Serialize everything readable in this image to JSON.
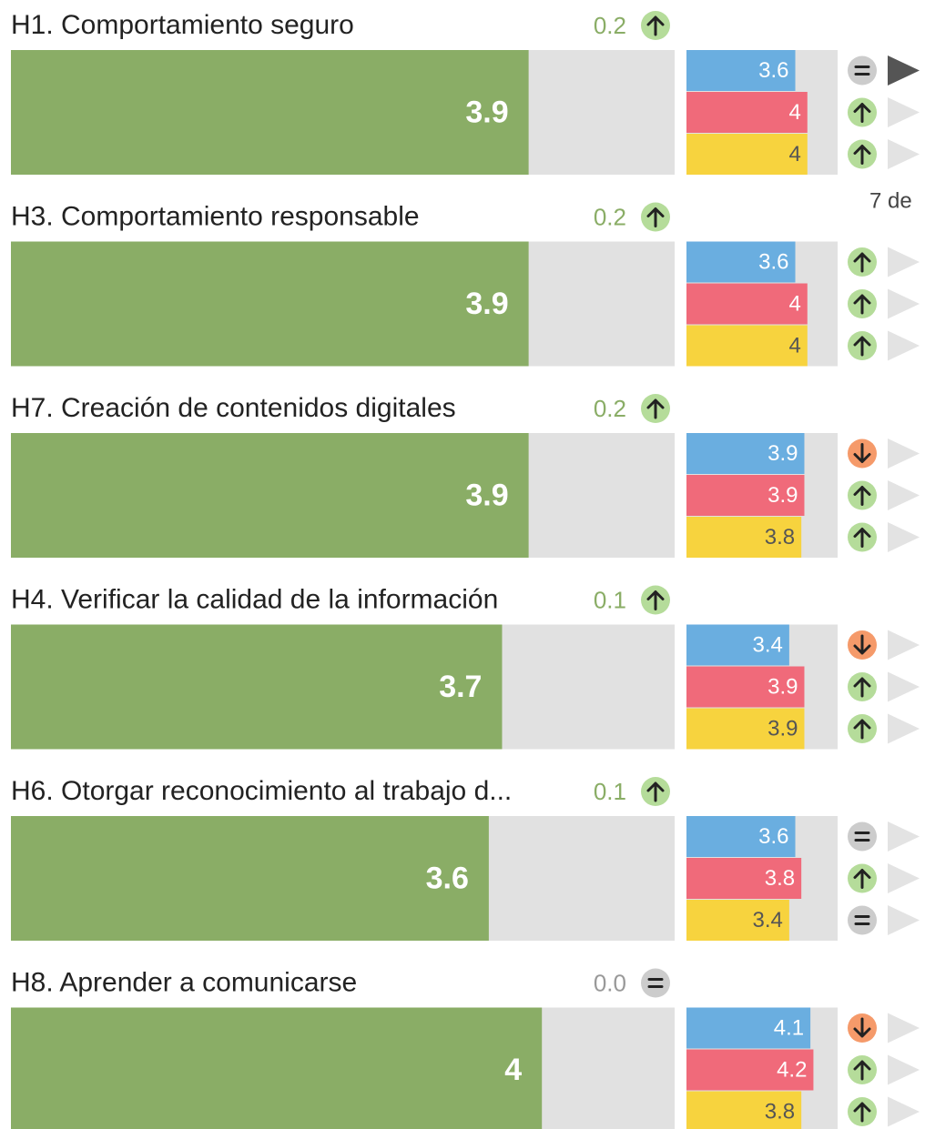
{
  "chart_data": {
    "type": "bar",
    "xlim": [
      0,
      5
    ],
    "color": "#8aad66",
    "sub_colors": [
      "#6aaee0",
      "#f06a7a",
      "#f7d33e"
    ],
    "note": "7 de",
    "items": [
      {
        "title": "H1. Comportamiento seguro",
        "delta": 0.2,
        "delta_trend": "up",
        "value": 3.9,
        "sub_values": [
          3.6,
          4,
          4
        ],
        "sub_trends": [
          "equal",
          "up",
          "up"
        ]
      },
      {
        "title": "H3. Comportamiento responsable",
        "delta": 0.2,
        "delta_trend": "up",
        "value": 3.9,
        "sub_values": [
          3.6,
          4,
          4
        ],
        "sub_trends": [
          "up",
          "up",
          "up"
        ]
      },
      {
        "title": "H7. Creación de contenidos digitales",
        "delta": 0.2,
        "delta_trend": "up",
        "value": 3.9,
        "sub_values": [
          3.9,
          3.9,
          3.8
        ],
        "sub_trends": [
          "down",
          "up",
          "up"
        ]
      },
      {
        "title": "H4. Verificar la calidad de la información",
        "delta": 0.1,
        "delta_trend": "up",
        "value": 3.7,
        "sub_values": [
          3.4,
          3.9,
          3.9
        ],
        "sub_trends": [
          "down",
          "up",
          "up"
        ]
      },
      {
        "title": "H6. Otorgar reconocimiento al trabajo d...",
        "delta": 0.1,
        "delta_trend": "up",
        "value": 3.6,
        "sub_values": [
          3.6,
          3.8,
          3.4
        ],
        "sub_trends": [
          "equal",
          "up",
          "equal"
        ]
      },
      {
        "title": "H8. Aprender a comunicarse",
        "delta": 0,
        "delta_label": "0.0",
        "delta_trend": "equal",
        "value": 4,
        "sub_values": [
          4.1,
          4.2,
          3.8
        ],
        "sub_trends": [
          "down",
          "up",
          "up"
        ]
      }
    ]
  }
}
